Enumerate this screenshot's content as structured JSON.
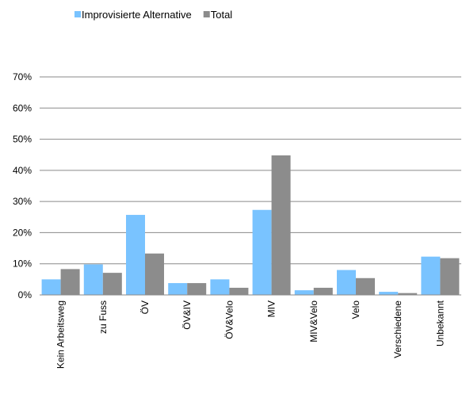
{
  "chart_data": {
    "type": "bar",
    "title": "",
    "xlabel": "",
    "ylabel": "",
    "ylim": [
      0,
      70
    ],
    "y_ticks": [
      "0%",
      "10%",
      "20%",
      "30%",
      "40%",
      "50%",
      "60%",
      "70%"
    ],
    "grid": true,
    "legend_position": "top-left",
    "categories": [
      "Kein Arbeitsweg",
      "zu Fuss",
      "ÖV",
      "ÖV&IV",
      "ÖV&Velo",
      "MIV",
      "MIV&Velo",
      "Velo",
      "Verschiedene",
      "Unbekannt"
    ],
    "series": [
      {
        "name": "Improvisierte Alternative",
        "color": "#79c3ff",
        "values": [
          5.0,
          9.8,
          25.7,
          3.8,
          5.0,
          27.3,
          1.5,
          8.0,
          1.0,
          12.3
        ]
      },
      {
        "name": "Total",
        "color": "#8c8c8c",
        "values": [
          8.3,
          7.1,
          13.3,
          3.8,
          2.3,
          44.8,
          2.3,
          5.4,
          0.6,
          11.8
        ]
      }
    ]
  }
}
